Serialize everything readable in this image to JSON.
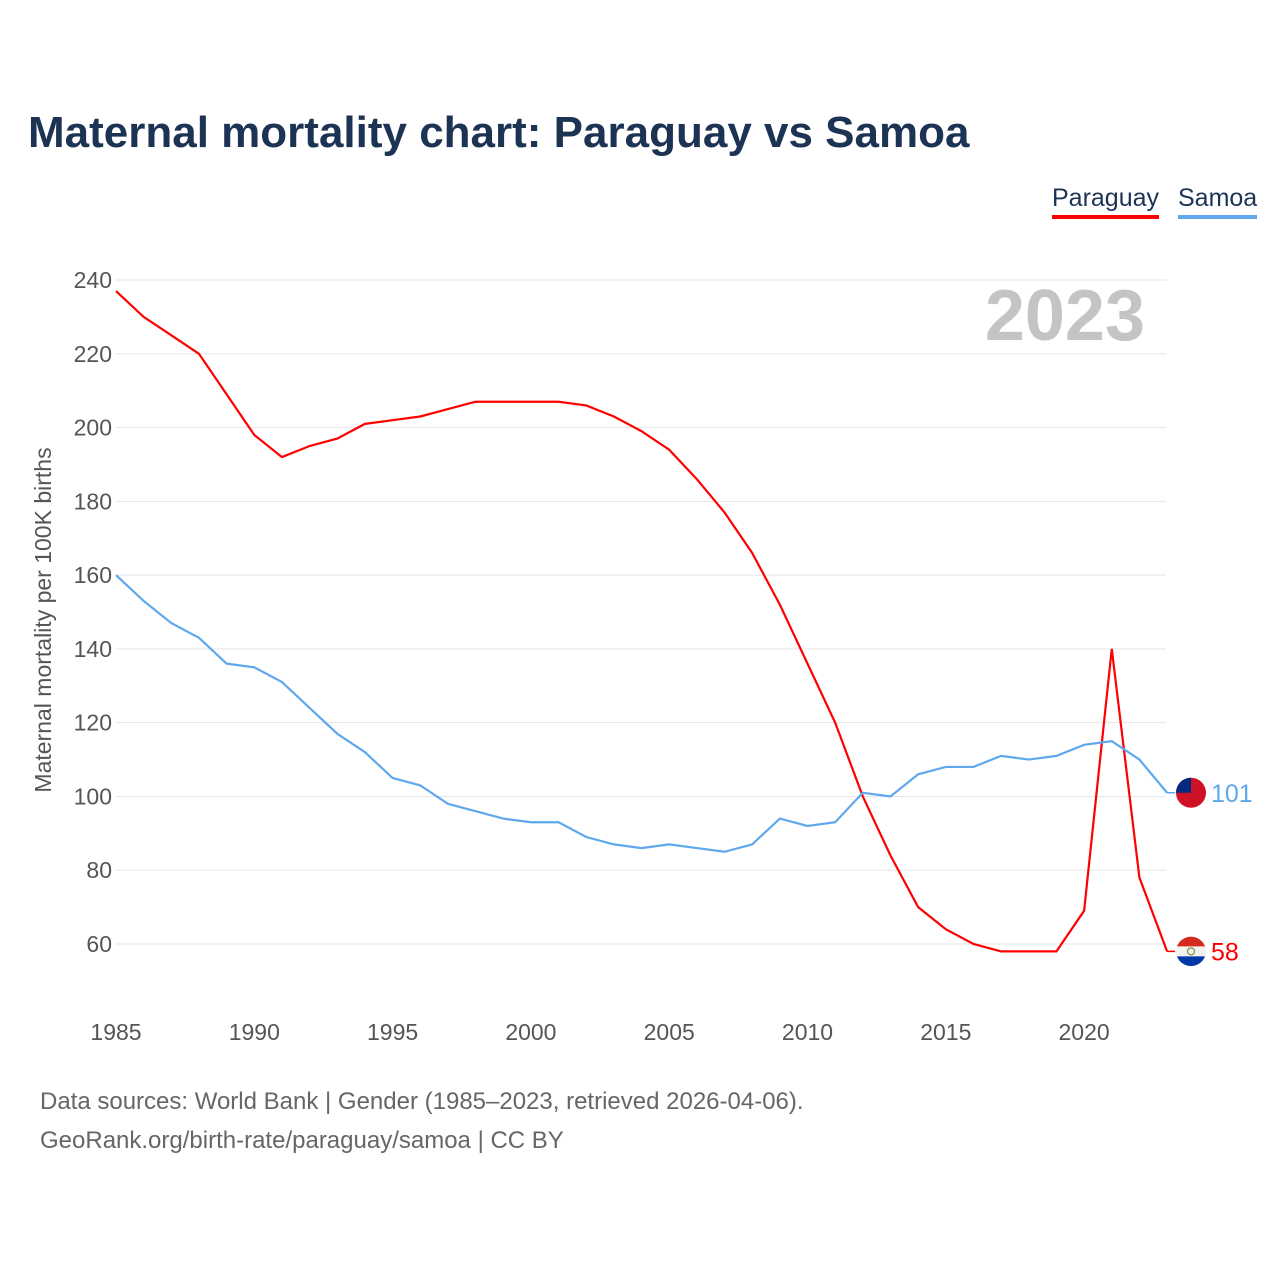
{
  "title": "Maternal mortality chart: Paraguay vs Samoa",
  "year_watermark": "2023",
  "footer": {
    "line1": "Data sources: World Bank | Gender (1985–2023, retrieved 2026-04-06).",
    "line2": "GeoRank.org/birth-rate/paraguay/samoa | CC BY"
  },
  "chart_data": {
    "type": "line",
    "title": "Maternal mortality chart: Paraguay vs Samoa",
    "xlabel": "",
    "ylabel": "Maternal mortality per 100K births",
    "ylim": [
      50,
      240
    ],
    "yticks": [
      60,
      80,
      100,
      120,
      140,
      160,
      180,
      200,
      220,
      240
    ],
    "xticks": [
      1985,
      1990,
      1995,
      2000,
      2005,
      2010,
      2015,
      2020
    ],
    "grid": true,
    "legend_placement": "top-right",
    "x": [
      1985,
      1986,
      1987,
      1988,
      1989,
      1990,
      1991,
      1992,
      1993,
      1994,
      1995,
      1996,
      1997,
      1998,
      1999,
      2000,
      2001,
      2002,
      2003,
      2004,
      2005,
      2006,
      2007,
      2008,
      2009,
      2010,
      2011,
      2012,
      2013,
      2014,
      2015,
      2016,
      2017,
      2018,
      2019,
      2020,
      2021,
      2022,
      2023
    ],
    "series": [
      {
        "name": "Paraguay",
        "color": "#ff0000",
        "end_label": "58",
        "values": [
          237,
          230,
          225,
          220,
          209,
          198,
          192,
          195,
          197,
          201,
          202,
          203,
          205,
          207,
          207,
          207,
          207,
          206,
          203,
          199,
          194,
          186,
          177,
          166,
          152,
          136,
          120,
          100,
          84,
          70,
          64,
          60,
          58,
          58,
          58,
          69,
          140,
          78,
          58
        ]
      },
      {
        "name": "Samoa",
        "color": "#5fa8ee",
        "end_label": "101",
        "values": [
          160,
          153,
          147,
          143,
          136,
          135,
          131,
          124,
          117,
          112,
          105,
          103,
          98,
          96,
          94,
          93,
          93,
          89,
          87,
          86,
          87,
          86,
          85,
          87,
          94,
          92,
          93,
          101,
          100,
          106,
          108,
          108,
          111,
          110,
          111,
          114,
          115,
          110,
          101
        ]
      }
    ]
  }
}
